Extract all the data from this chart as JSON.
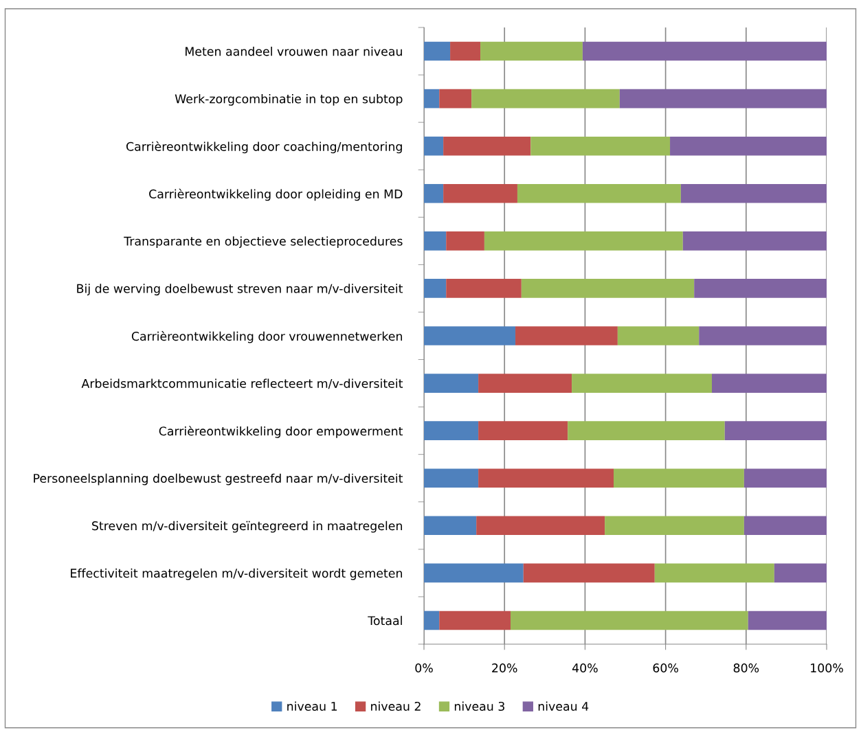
{
  "chart_data": {
    "type": "bar",
    "orientation": "horizontal",
    "stacked": true,
    "categories": [
      "Meten aandeel vrouwen naar niveau",
      "Werk-zorgcombinatie in top en subtop",
      "Carrièreontwikkeling door coaching/mentoring",
      "Carrièreontwikkeling door opleiding en MD",
      "Transparante en objectieve selectieprocedures",
      "Bij de werving doelbewust streven naar m/v-diversiteit",
      "Carrièreontwikkeling door vrouwennetwerken",
      "Arbeidsmarktcommunicatie reflecteert m/v-diversiteit",
      "Carrièreontwikkeling door empowerment",
      "Personeelsplanning doelbewust gestreefd naar m/v-diversiteit",
      "Streven m/v-diversiteit geïntegreerd in maatregelen",
      "Effectiviteit maatregelen m/v-diversiteit wordt gemeten",
      "Totaal"
    ],
    "series": [
      {
        "name": "niveau 1",
        "color": "#4f81bd",
        "values": [
          6.5,
          3.8,
          4.8,
          4.8,
          5.5,
          5.5,
          22.7,
          13.5,
          13.5,
          13.5,
          13.0,
          24.7,
          3.8
        ]
      },
      {
        "name": "niveau 2",
        "color": "#c0504d",
        "values": [
          7.5,
          8.0,
          21.7,
          18.4,
          9.5,
          18.7,
          25.4,
          23.2,
          22.2,
          33.6,
          31.9,
          32.6,
          17.7
        ]
      },
      {
        "name": "niveau 3",
        "color": "#9bbb59",
        "values": [
          25.4,
          36.8,
          34.6,
          40.6,
          49.3,
          42.9,
          20.2,
          34.8,
          39.0,
          32.4,
          34.6,
          29.7,
          59.0
        ]
      },
      {
        "name": "niveau 4",
        "color": "#8064a2",
        "values": [
          60.6,
          51.4,
          38.9,
          36.2,
          35.7,
          32.9,
          31.7,
          28.5,
          25.3,
          20.5,
          20.5,
          13.0,
          19.5
        ]
      }
    ],
    "xlim": [
      0,
      100
    ],
    "xticks": [
      {
        "value": 0,
        "label": "0%"
      },
      {
        "value": 20,
        "label": "20%"
      },
      {
        "value": 40,
        "label": "40%"
      },
      {
        "value": 60,
        "label": "60%"
      },
      {
        "value": 80,
        "label": "80%"
      },
      {
        "value": 100,
        "label": "100%"
      }
    ],
    "grid": "x",
    "legend": "bottom"
  }
}
